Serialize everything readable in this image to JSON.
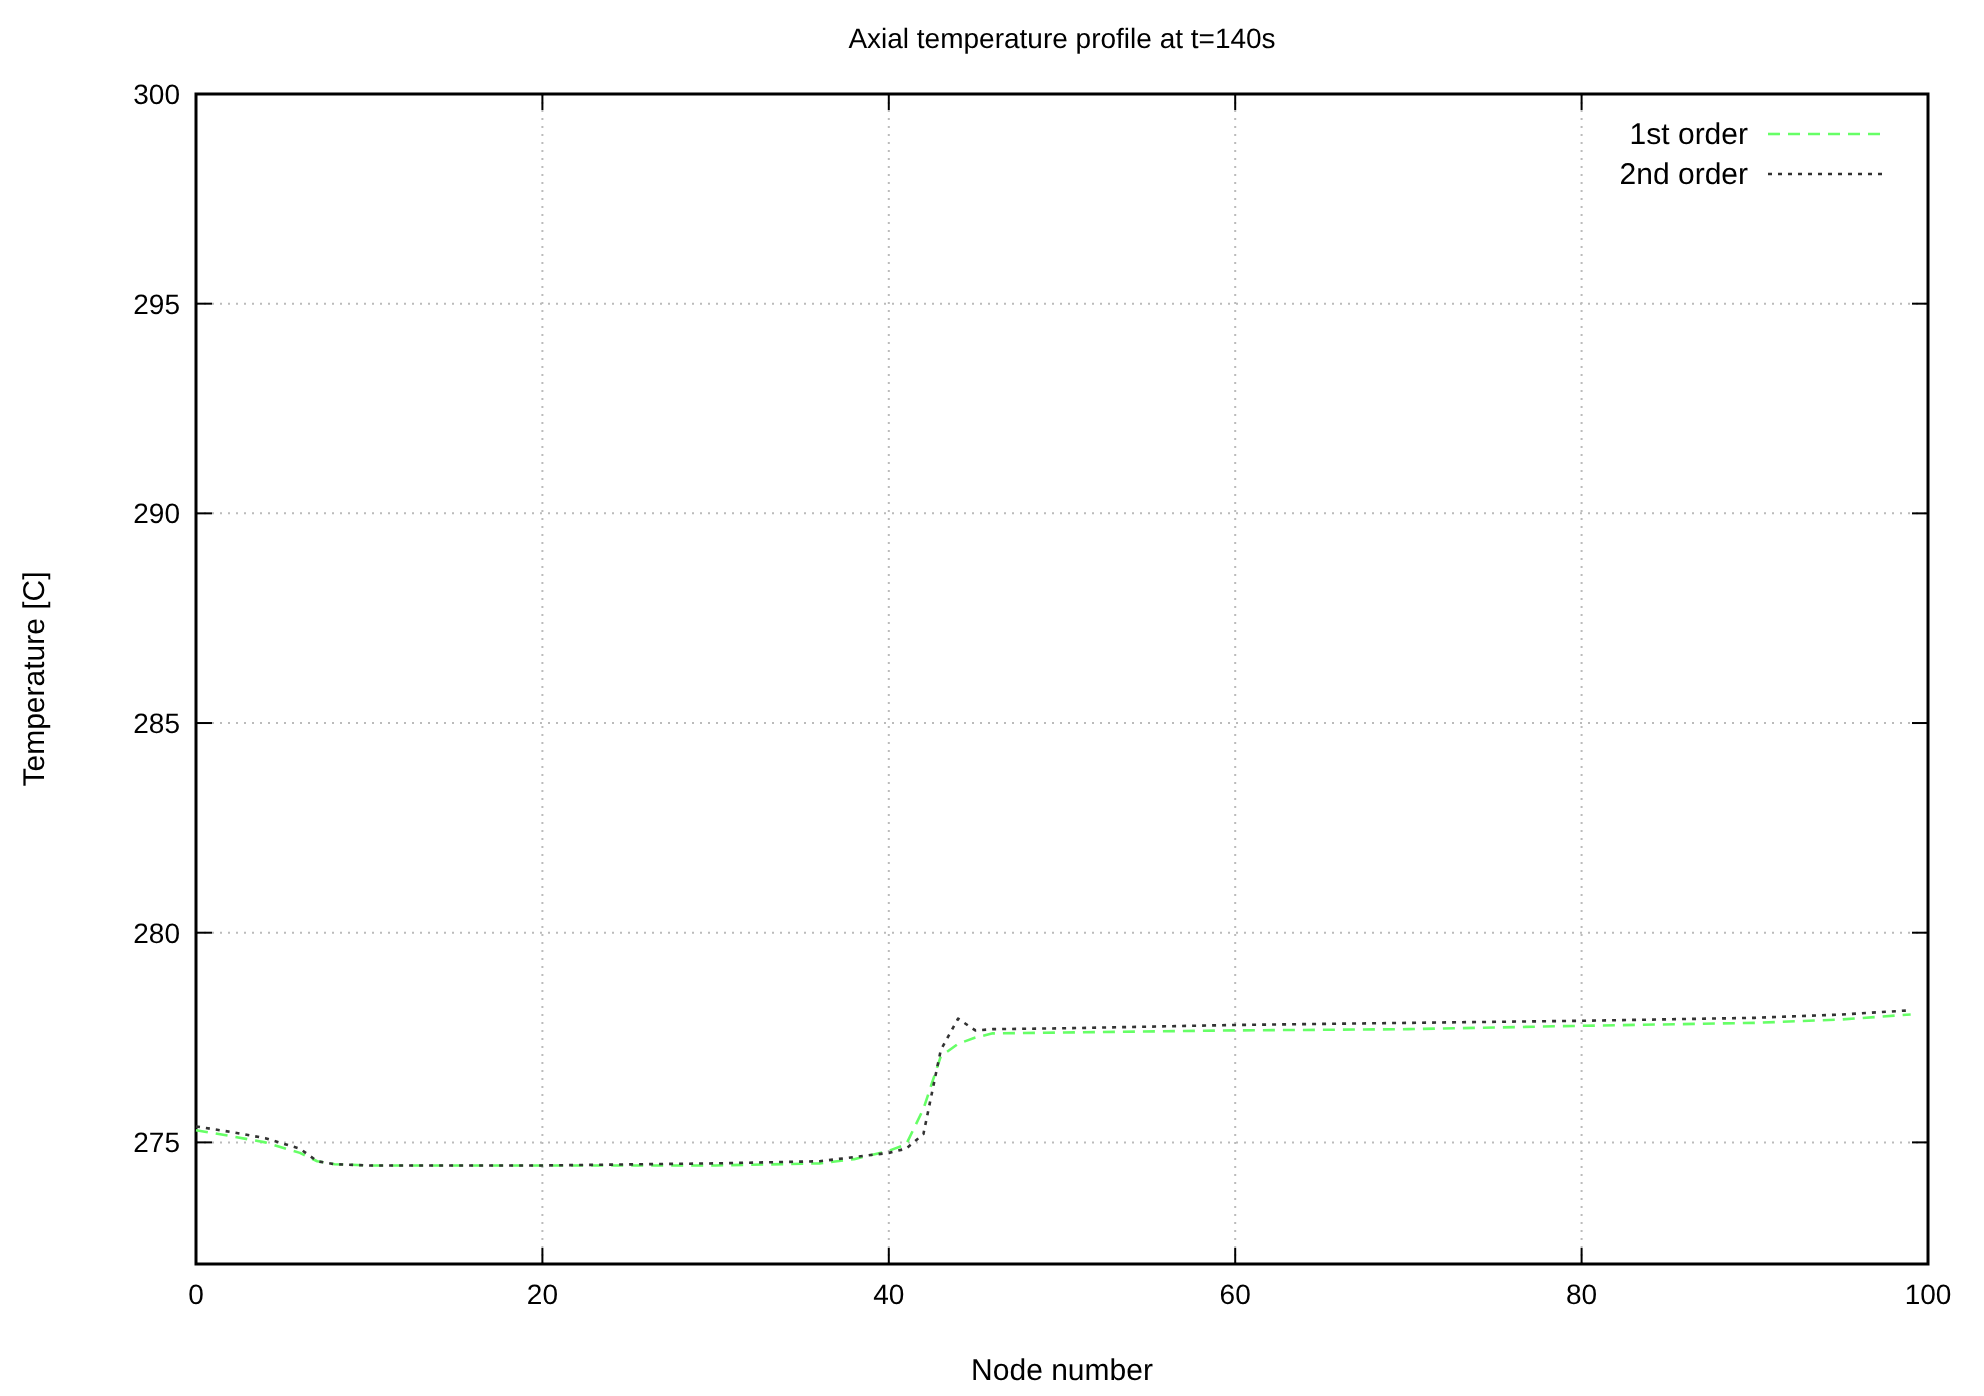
{
  "chart_data": {
    "type": "line",
    "title": "Axial temperature profile at t=140s",
    "xlabel": "Node number",
    "ylabel": "Temperature [C]",
    "xlim": [
      0,
      100
    ],
    "ylim": [
      272.1,
      300
    ],
    "xticks": [
      0,
      20,
      40,
      60,
      80,
      100
    ],
    "yticks": [
      275,
      280,
      285,
      290,
      295,
      300
    ],
    "grid": true,
    "legend": "top right",
    "series": [
      {
        "name": "1st order",
        "color": "#66ff66",
        "line_style": "dashed",
        "x": [
          0,
          2,
          4,
          6,
          7,
          8,
          10,
          20,
          30,
          36,
          38,
          40,
          41,
          42,
          43,
          44,
          45,
          46,
          50,
          60,
          70,
          80,
          90,
          95,
          99
        ],
        "values": [
          275.29,
          275.15,
          275.0,
          274.75,
          274.55,
          274.48,
          274.45,
          274.45,
          274.45,
          274.5,
          274.6,
          274.8,
          274.95,
          275.8,
          277.05,
          277.35,
          277.5,
          277.6,
          277.62,
          277.67,
          277.7,
          277.78,
          277.85,
          277.93,
          278.05
        ]
      },
      {
        "name": "2nd order",
        "color": "#333333",
        "line_style": "dotted",
        "x": [
          0,
          2,
          4,
          6,
          7,
          8,
          10,
          20,
          30,
          36,
          38,
          40,
          41,
          42,
          43,
          44,
          45,
          46,
          50,
          60,
          70,
          80,
          90,
          95,
          99
        ],
        "values": [
          275.38,
          275.25,
          275.1,
          274.85,
          274.55,
          274.48,
          274.45,
          274.45,
          274.5,
          274.55,
          274.65,
          274.75,
          274.85,
          275.2,
          277.2,
          277.95,
          277.67,
          277.7,
          277.72,
          277.8,
          277.85,
          277.9,
          277.97,
          278.05,
          278.15
        ]
      }
    ]
  }
}
